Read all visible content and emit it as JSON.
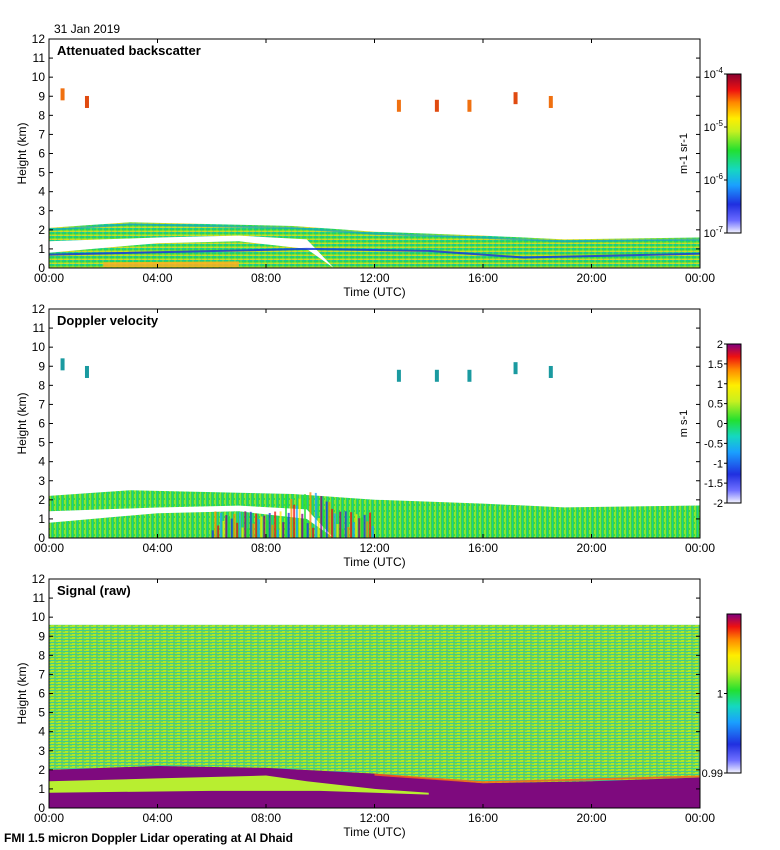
{
  "date_label": "31 Jan 2019",
  "footer": "FMI 1.5 micron Doppler Lidar operating at Al Dhaid",
  "chart_data": [
    {
      "type": "heatmap",
      "title": "Attenuated backscatter",
      "xlabel": "Time (UTC)",
      "ylabel": "Height (km)",
      "xlim": [
        0,
        24
      ],
      "ylim": [
        0,
        12
      ],
      "xticks": [
        "00:00",
        "04:00",
        "08:00",
        "12:00",
        "16:00",
        "20:00",
        "00:00"
      ],
      "yticks": [
        "0",
        "1",
        "2",
        "3",
        "4",
        "5",
        "6",
        "7",
        "8",
        "9",
        "10",
        "11",
        "12"
      ],
      "colorbar": {
        "unit_label": "m-1 sr-1",
        "scale": "log",
        "range": [
          1e-07,
          0.0001
        ],
        "ticks": [
          "10-7",
          "10-6",
          "10-5",
          "10-4"
        ]
      },
      "layers": {
        "boundary_layer_top_km": [
          [
            0,
            2.1
          ],
          [
            3,
            2.4
          ],
          [
            6,
            2.3
          ],
          [
            9,
            2.2
          ],
          [
            12,
            1.9
          ],
          [
            16,
            1.7
          ],
          [
            19,
            1.5
          ],
          [
            24,
            1.6
          ]
        ],
        "clear_gap_km": [
          [
            0,
            0.8,
            1.4
          ],
          [
            4,
            1.3,
            1.6
          ],
          [
            7,
            1.4,
            1.7
          ],
          [
            9.5,
            1.0,
            1.5
          ],
          [
            10.5,
            0,
            0
          ]
        ],
        "cirrus_patches": [
          [
            0.5,
            9.1
          ],
          [
            1.4,
            8.7
          ],
          [
            12.9,
            8.5
          ],
          [
            14.3,
            8.5
          ],
          [
            15.5,
            8.5
          ],
          [
            17.2,
            8.9
          ],
          [
            18.5,
            8.7
          ]
        ]
      }
    },
    {
      "type": "heatmap",
      "title": "Doppler velocity",
      "xlabel": "Time (UTC)",
      "ylabel": "Height (km)",
      "xlim": [
        0,
        24
      ],
      "ylim": [
        0,
        12
      ],
      "xticks": [
        "00:00",
        "04:00",
        "08:00",
        "12:00",
        "16:00",
        "20:00",
        "00:00"
      ],
      "yticks": [
        "0",
        "1",
        "2",
        "3",
        "4",
        "5",
        "6",
        "7",
        "8",
        "9",
        "10",
        "11",
        "12"
      ],
      "colorbar": {
        "unit_label": "m s-1",
        "scale": "linear",
        "range": [
          -2,
          2
        ],
        "ticks": [
          "-2",
          "-1.5",
          "-1",
          "-0.5",
          "0",
          "0.5",
          "1",
          "1.5",
          "2"
        ]
      }
    },
    {
      "type": "heatmap",
      "title": "Signal (raw)",
      "xlabel": "Time (UTC)",
      "ylabel": "Height (km)",
      "xlim": [
        0,
        24
      ],
      "ylim": [
        0,
        12
      ],
      "xticks": [
        "00:00",
        "04:00",
        "08:00",
        "12:00",
        "16:00",
        "20:00",
        "00:00"
      ],
      "yticks": [
        "0",
        "1",
        "2",
        "3",
        "4",
        "5",
        "6",
        "7",
        "8",
        "9",
        "10",
        "11",
        "12"
      ],
      "colorbar": {
        "scale": "linear",
        "range": [
          0.99,
          1.01
        ],
        "ticks": [
          "0.99",
          "1"
        ]
      },
      "signal_top_km": 9.6
    }
  ]
}
